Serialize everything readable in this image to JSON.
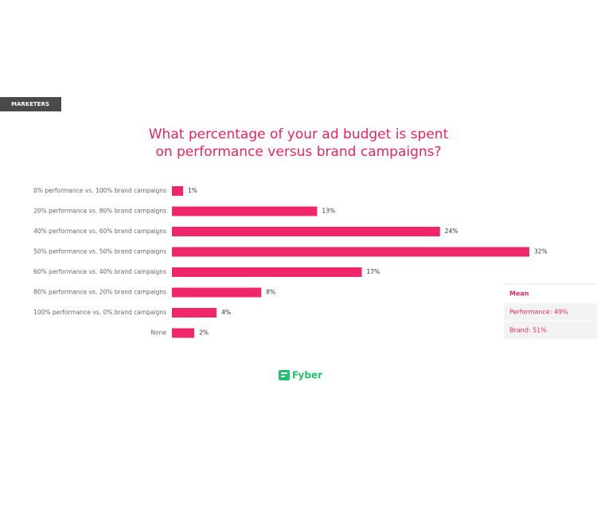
{
  "tag": "MARKETERS",
  "chart_data": {
    "type": "bar",
    "orientation": "horizontal",
    "title": "What percentage of your ad budget is spent on performance versus brand campaigns?",
    "categories": [
      "0% performance vs. 100% brand campaigns",
      "20% performance vs. 80% brand campaigns",
      "40% performance vs. 60% brand campaigns",
      "50% performance vs. 50% brand campaigns",
      "60% performance vs. 40% brand campaigns",
      "80% performance vs. 20% brand campaigns",
      "100% performance vs. 0% brand campaigns",
      "None"
    ],
    "values": [
      1,
      13,
      24,
      32,
      17,
      8,
      4,
      2
    ],
    "value_labels": [
      "1%",
      "13%",
      "24%",
      "32%",
      "17%",
      "8%",
      "4%",
      "2%"
    ],
    "color": "#f0266b"
  },
  "mean_box": {
    "title": "Mean",
    "rows": [
      "Performance: 49%",
      "Brand: 51%"
    ]
  },
  "logo": "Fyber"
}
